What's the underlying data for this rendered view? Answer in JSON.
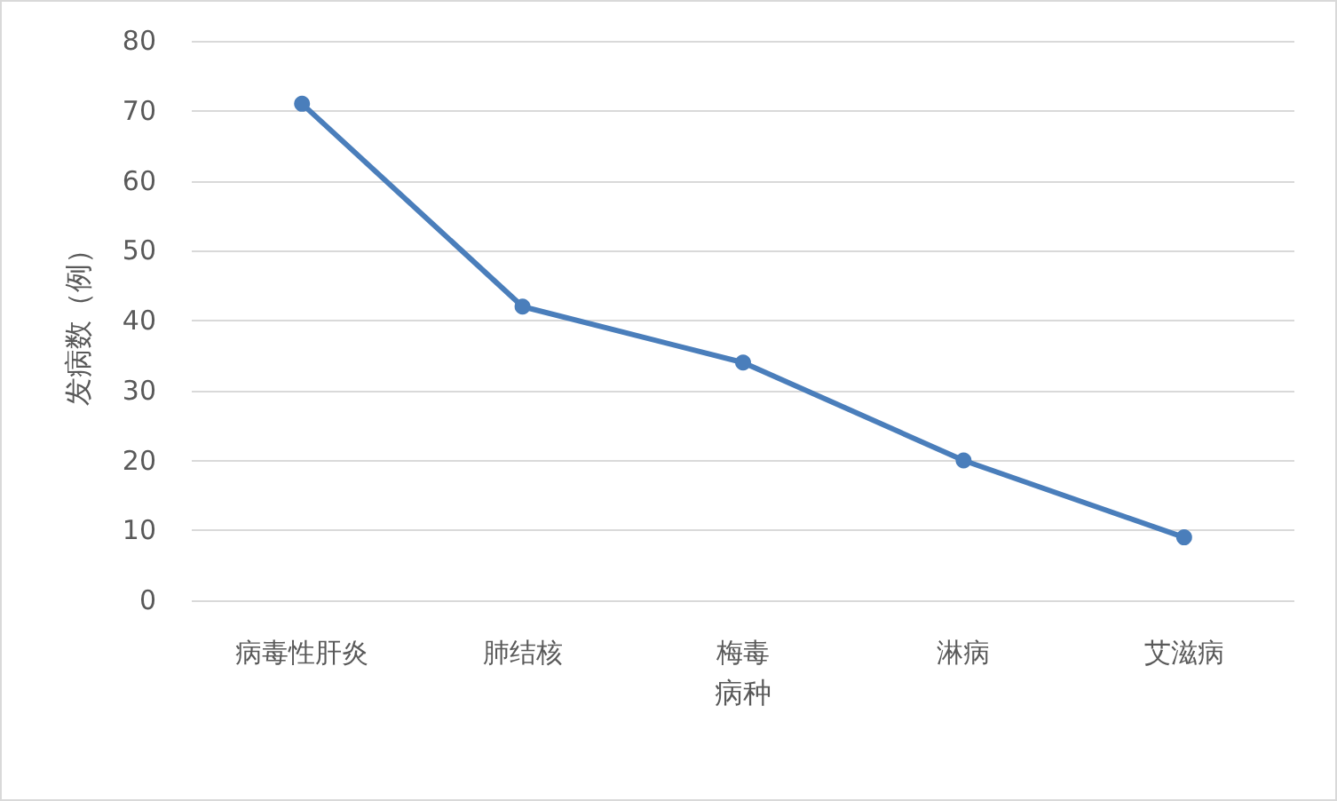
{
  "chart_data": {
    "type": "line",
    "xlabel": "病种",
    "ylabel": "发病数（例）",
    "categories": [
      "病毒性肝炎",
      "肺结核",
      "梅毒",
      "淋病",
      "艾滋病"
    ],
    "series": [
      {
        "color": "#4a7ebb",
        "values": [
          71,
          42,
          34,
          20,
          9
        ]
      }
    ],
    "ylim": [
      0,
      80
    ],
    "yticks": [
      0,
      10,
      20,
      30,
      40,
      50,
      60,
      70,
      80
    ],
    "grid": "y",
    "marker": "circle",
    "line_style": "solid"
  }
}
